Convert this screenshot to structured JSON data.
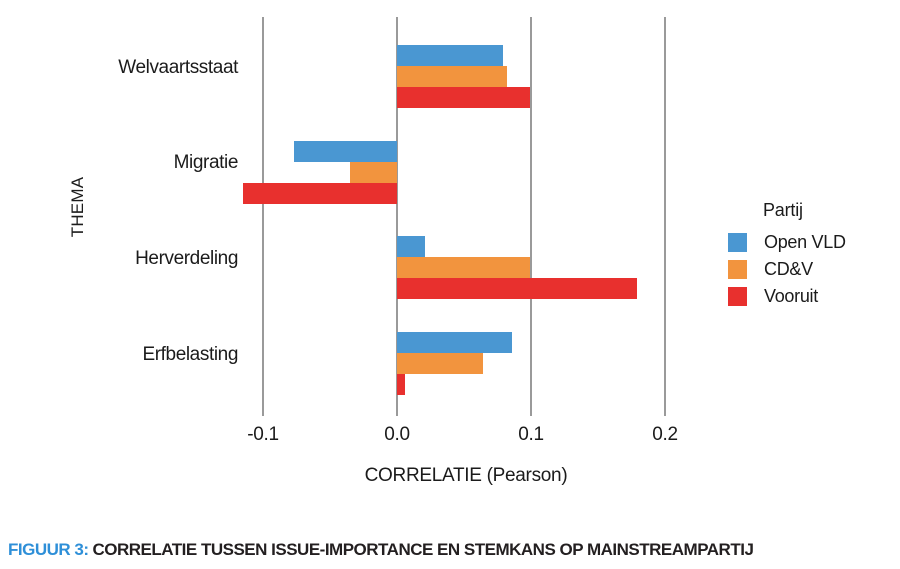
{
  "figure": {
    "caption_prefix": "FIGUUR 3:",
    "caption_text": "CORRELATIE TUSSEN ISSUE-IMPORTANCE EN STEMKANS OP MAINSTREAMPARTIJ"
  },
  "chart_data": {
    "type": "bar",
    "orientation": "horizontal",
    "title": "",
    "xlabel": "CORRELATIE (Pearson)",
    "ylabel": "THEMA",
    "categories": [
      "Welvaartsstaat",
      "Migratie",
      "Herverdeling",
      "Erfbelasting"
    ],
    "series": [
      {
        "name": "Open VLD",
        "color": "#4a97d2",
        "values": [
          0.079,
          -0.077,
          0.021,
          0.086
        ]
      },
      {
        "name": "CD&V",
        "color": "#f2943e",
        "values": [
          0.082,
          -0.035,
          0.099,
          0.064
        ]
      },
      {
        "name": "Vooruit",
        "color": "#e8302e",
        "values": [
          0.099,
          -0.115,
          0.179,
          0.006
        ]
      }
    ],
    "x_ticks": [
      -0.1,
      0.0,
      0.1,
      0.2
    ],
    "x_tick_labels": [
      "-0.1",
      "0.0",
      "0.1",
      "0.2"
    ],
    "xlim": [
      -0.125,
      0.21
    ],
    "grid": "vertical-only",
    "legend": {
      "title": "Partij",
      "position": "right"
    }
  },
  "colors": {
    "caption_accent": "#2e8fd8",
    "text": "#231f20",
    "gridline": "#9a9a9a"
  }
}
